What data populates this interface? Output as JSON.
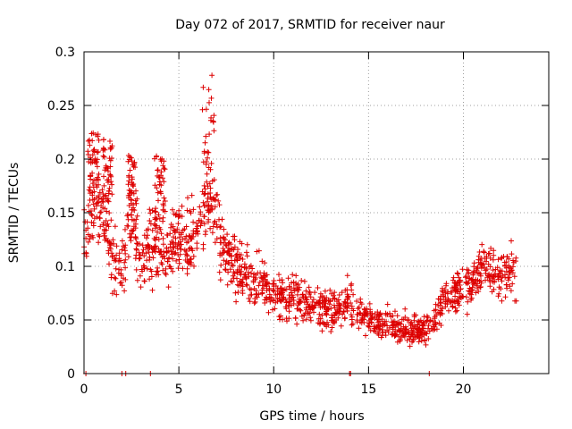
{
  "chart_data": {
    "type": "scatter",
    "title": "Day 072 of 2017, SRMTID for receiver naur",
    "xlabel": "GPS time / hours",
    "ylabel": "SRMTID / TECUs",
    "xlim": [
      0,
      24.5
    ],
    "ylim": [
      0,
      0.3
    ],
    "xticks": [
      0,
      5,
      10,
      15,
      20
    ],
    "xtick_labels": [
      "0",
      "5",
      "10",
      "15",
      "20"
    ],
    "yticks": [
      0,
      0.05,
      0.1,
      0.15,
      0.2,
      0.25,
      0.3
    ],
    "ytick_labels": [
      "0",
      "0.05",
      "0.1",
      "0.15",
      "0.2",
      "0.25",
      "0.3"
    ],
    "grid": true,
    "marker": "+",
    "series_color": "#dd0000",
    "zero_points_x": [
      0.1,
      2.0,
      2.2,
      3.5,
      14.0,
      14.05,
      18.2
    ],
    "trend": {
      "note": "Approximate mean SRMTID level by GPS hour as read from the plot",
      "x": [
        0,
        0.5,
        1,
        1.5,
        2,
        2.5,
        3,
        3.5,
        4,
        4.5,
        5,
        5.5,
        6,
        6.5,
        7,
        7.5,
        8,
        9,
        10,
        11,
        12,
        13,
        14,
        15,
        16,
        17,
        18,
        18.5,
        19,
        19.5,
        20,
        20.5,
        21,
        21.5,
        22,
        22.5,
        22.8
      ],
      "y": [
        0.135,
        0.16,
        0.15,
        0.11,
        0.1,
        0.15,
        0.1,
        0.12,
        0.12,
        0.115,
        0.13,
        0.125,
        0.13,
        0.17,
        0.14,
        0.11,
        0.1,
        0.085,
        0.075,
        0.07,
        0.065,
        0.06,
        0.065,
        0.05,
        0.045,
        0.04,
        0.04,
        0.05,
        0.07,
        0.075,
        0.08,
        0.085,
        0.1,
        0.095,
        0.09,
        0.095,
        0.1
      ]
    },
    "clusters": [
      {
        "x": [
          0.2,
          0.8
        ],
        "y": [
          0.17,
          0.225
        ]
      },
      {
        "x": [
          1.0,
          1.5
        ],
        "y": [
          0.16,
          0.22
        ]
      },
      {
        "x": [
          2.3,
          2.8
        ],
        "y": [
          0.14,
          0.205
        ]
      },
      {
        "x": [
          6.2,
          6.9
        ],
        "y": [
          0.15,
          0.285
        ]
      },
      {
        "x": [
          3.7,
          4.3
        ],
        "y": [
          0.15,
          0.205
        ]
      }
    ]
  }
}
